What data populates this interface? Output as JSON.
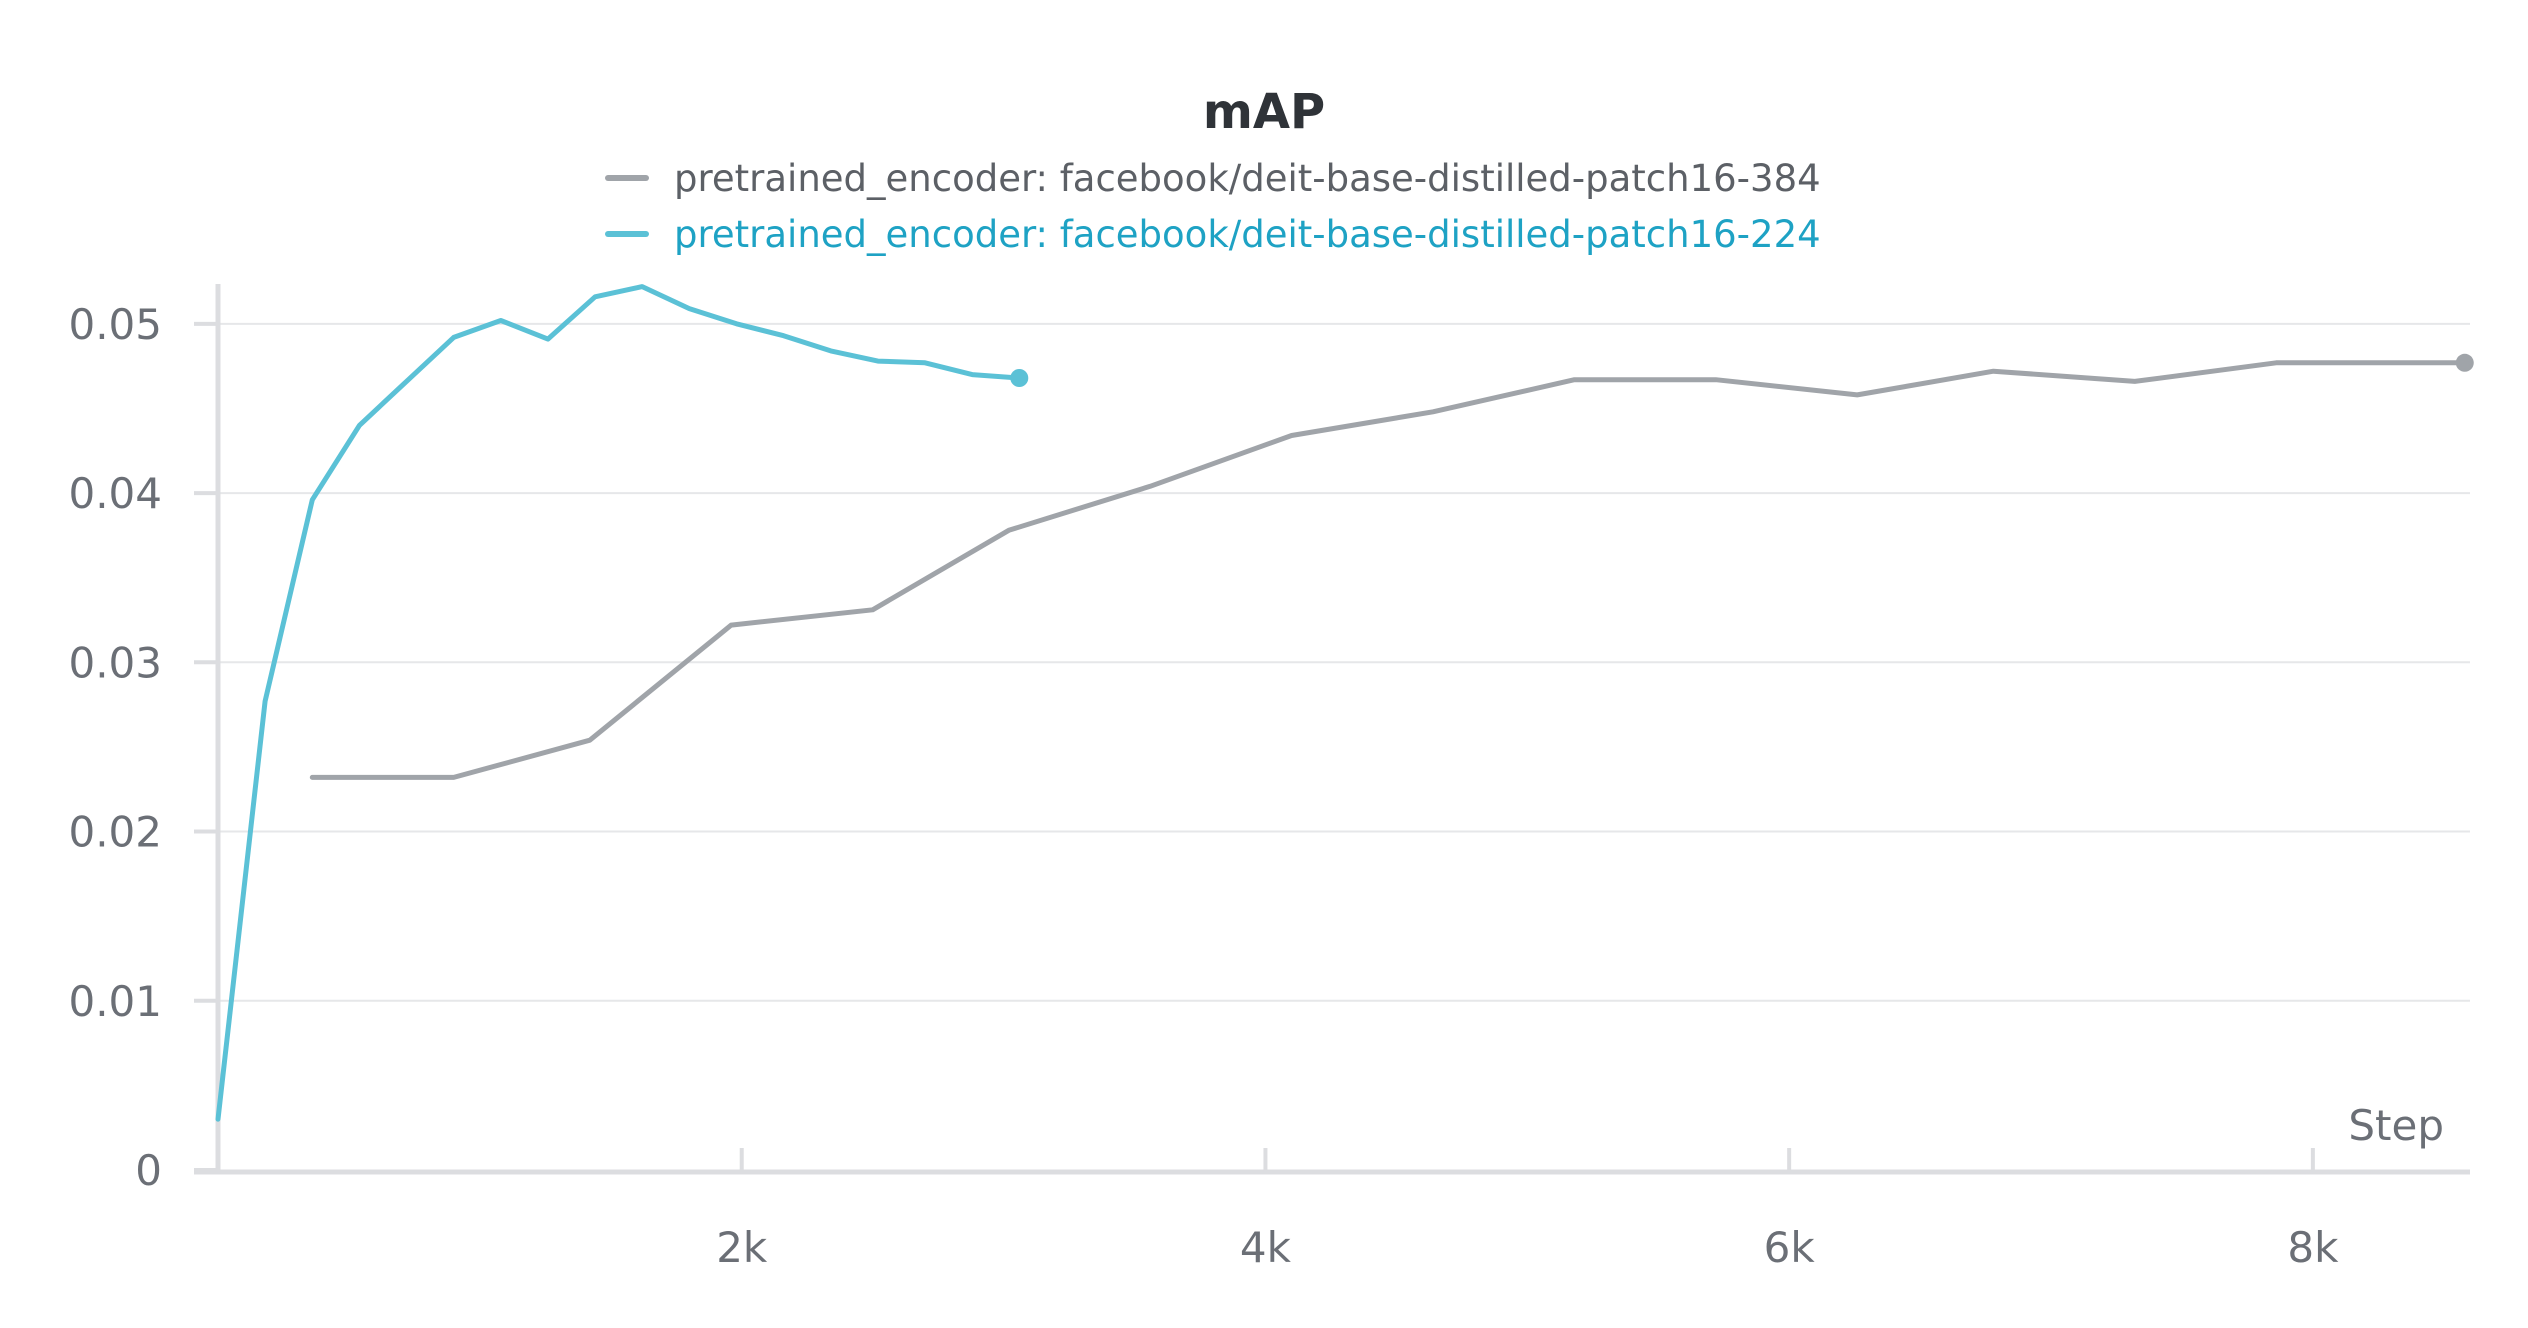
{
  "chart_data": {
    "type": "line",
    "title": "mAP",
    "xlabel": "Step",
    "ylabel": "",
    "xlim": [
      0,
      8600
    ],
    "ylim": [
      0,
      0.052
    ],
    "x_ticks": [
      {
        "value": 2000,
        "label": "2k"
      },
      {
        "value": 4000,
        "label": "4k"
      },
      {
        "value": 6000,
        "label": "6k"
      },
      {
        "value": 8000,
        "label": "8k"
      }
    ],
    "y_ticks": [
      {
        "value": 0,
        "label": "0"
      },
      {
        "value": 0.01,
        "label": "0.01"
      },
      {
        "value": 0.02,
        "label": "0.02"
      },
      {
        "value": 0.03,
        "label": "0.03"
      },
      {
        "value": 0.04,
        "label": "0.04"
      },
      {
        "value": 0.05,
        "label": "0.05"
      }
    ],
    "grid": true,
    "legend_position": "top-center",
    "series": [
      {
        "name": "pretrained_encoder: facebook/deit-base-distilled-patch16-384",
        "color": "#a0a4a9",
        "legend_text_color": "#5c6066",
        "x": [
          360,
          900,
          1420,
          1960,
          2500,
          3020,
          3560,
          4100,
          4640,
          5180,
          5720,
          6260,
          6780,
          7320,
          7860,
          8580
        ],
        "y": [
          0.0232,
          0.0232,
          0.0254,
          0.0322,
          0.0331,
          0.0378,
          0.0404,
          0.0434,
          0.0448,
          0.0467,
          0.0467,
          0.0458,
          0.0472,
          0.0466,
          0.0477,
          0.0477
        ]
      },
      {
        "name": "pretrained_encoder: facebook/deit-base-distilled-patch16-224",
        "color": "#5bc1d6",
        "legend_text_color": "#1ea2c4",
        "x": [
          0,
          180,
          360,
          540,
          720,
          900,
          1080,
          1260,
          1440,
          1620,
          1800,
          1980,
          2160,
          2340,
          2520,
          2700,
          2880,
          3060
        ],
        "y": [
          0.003,
          0.0277,
          0.0396,
          0.044,
          0.0466,
          0.0492,
          0.0502,
          0.0491,
          0.0516,
          0.0522,
          0.0509,
          0.05,
          0.0493,
          0.0484,
          0.0478,
          0.0477,
          0.047,
          0.0468
        ]
      }
    ]
  }
}
